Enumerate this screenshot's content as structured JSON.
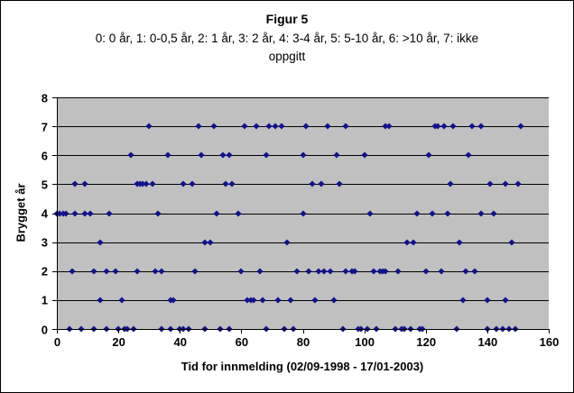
{
  "chart": {
    "title": "Figur 5",
    "subtitle_line1": "0: 0 år, 1: 0-0,5 år, 2: 1 år, 3: 2 år, 4: 3-4 år, 5: 5-10 år, 6: >10 år, 7: ikke",
    "subtitle_line2": "oppgitt",
    "xlabel": "Tid for innmelding (02/09-1998 - 17/01-2003)",
    "ylabel": "Brygget år"
  },
  "chart_data": {
    "type": "scatter",
    "title": "Figur 5",
    "subtitle": "0: 0 år, 1: 0-0,5 år, 2: 1 år, 3: 2 år, 4: 3-4 år, 5: 5-10 år, 6: >10 år, 7: ikke oppgitt",
    "xlabel": "Tid for innmelding (02/09-1998 - 17/01-2003)",
    "ylabel": "Brygget år",
    "xlim": [
      0,
      160
    ],
    "ylim": [
      0,
      8
    ],
    "x_ticks": [
      0,
      20,
      40,
      60,
      80,
      100,
      120,
      140,
      160
    ],
    "y_ticks": [
      0,
      1,
      2,
      3,
      4,
      5,
      6,
      7,
      8
    ],
    "grid": "horizontal-black",
    "legend": "none",
    "marker": "diamond",
    "marker_color": "#12128e",
    "plot_bg": "#c0c0c0",
    "series": [
      {
        "name": "brygget-ar-0",
        "y": 0,
        "x": [
          4,
          8,
          12,
          16,
          20,
          22,
          23,
          25,
          34,
          37,
          40,
          41,
          43,
          48,
          53,
          56,
          68,
          74,
          77,
          93,
          98,
          99,
          101,
          104,
          110,
          112,
          113,
          115,
          118,
          119,
          130,
          140,
          143,
          145,
          147,
          149
        ]
      },
      {
        "name": "brygget-ar-1",
        "y": 1,
        "x": [
          14,
          21,
          37,
          38,
          62,
          63,
          64,
          67,
          72,
          76,
          84,
          90,
          132,
          140,
          146
        ]
      },
      {
        "name": "brygget-ar-2",
        "y": 2,
        "x": [
          5,
          12,
          16,
          19,
          26,
          32,
          34,
          45,
          60,
          66,
          78,
          82,
          85,
          87,
          89,
          94,
          96,
          97,
          103,
          105,
          106,
          107,
          111,
          120,
          125,
          133,
          136
        ]
      },
      {
        "name": "brygget-ar-3",
        "y": 3,
        "x": [
          14,
          48,
          50,
          75,
          114,
          116,
          131,
          148
        ]
      },
      {
        "name": "brygget-ar-4",
        "y": 4,
        "x": [
          0,
          1,
          2,
          3,
          6,
          9,
          11,
          17,
          33,
          52,
          59,
          80,
          102,
          117,
          122,
          127,
          138,
          142
        ]
      },
      {
        "name": "brygget-ar-5",
        "y": 5,
        "x": [
          6,
          9,
          26,
          27,
          28,
          29,
          31,
          41,
          44,
          55,
          57,
          83,
          86,
          92,
          128,
          141,
          146,
          150
        ]
      },
      {
        "name": "brygget-ar-6",
        "y": 6,
        "x": [
          24,
          36,
          47,
          54,
          56,
          68,
          80,
          91,
          100,
          121,
          134
        ]
      },
      {
        "name": "brygget-ar-7",
        "y": 7,
        "x": [
          30,
          46,
          51,
          61,
          65,
          69,
          71,
          73,
          81,
          88,
          94,
          107,
          108,
          123,
          124,
          126,
          129,
          135,
          138,
          151
        ]
      }
    ]
  }
}
